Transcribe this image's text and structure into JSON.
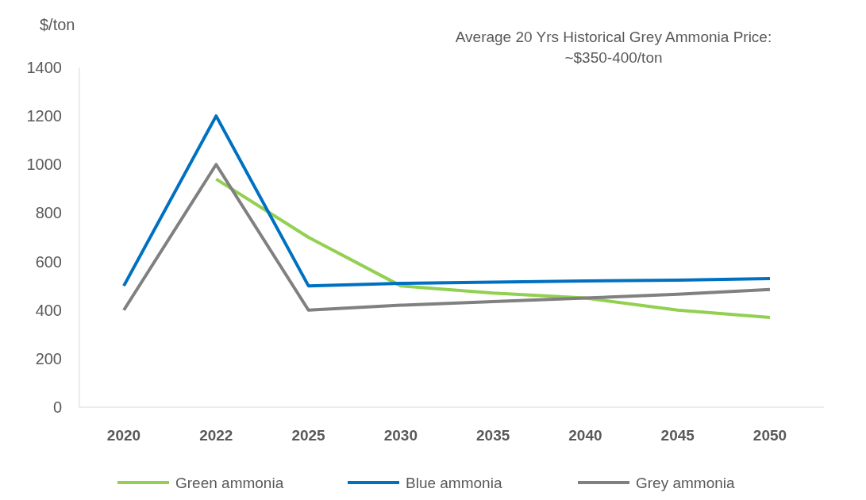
{
  "chart_data": {
    "type": "line",
    "ylabel": "$/ton",
    "annotations": [
      "Average 20 Yrs Historical Grey Ammonia Price: ~$350-400/ton"
    ],
    "categories": [
      "2020",
      "2022",
      "2025",
      "2030",
      "2035",
      "2040",
      "2045",
      "2050"
    ],
    "series": [
      {
        "name": "Green ammonia",
        "color": "#92d050",
        "values": [
          null,
          940,
          700,
          500,
          470,
          450,
          400,
          370
        ]
      },
      {
        "name": "Blue ammonia",
        "color": "#0070c0",
        "values": [
          500,
          1200,
          500,
          510,
          515,
          520,
          523,
          530
        ]
      },
      {
        "name": "Grey ammonia",
        "color": "#808080",
        "values": [
          400,
          1000,
          400,
          420,
          435,
          450,
          465,
          485
        ]
      }
    ],
    "ylim": [
      0,
      1400
    ],
    "yticks": [
      0,
      200,
      400,
      600,
      800,
      1000,
      1200,
      1400
    ],
    "grid": false,
    "legend": "bottom",
    "marker": "none",
    "line_style": "solid"
  }
}
